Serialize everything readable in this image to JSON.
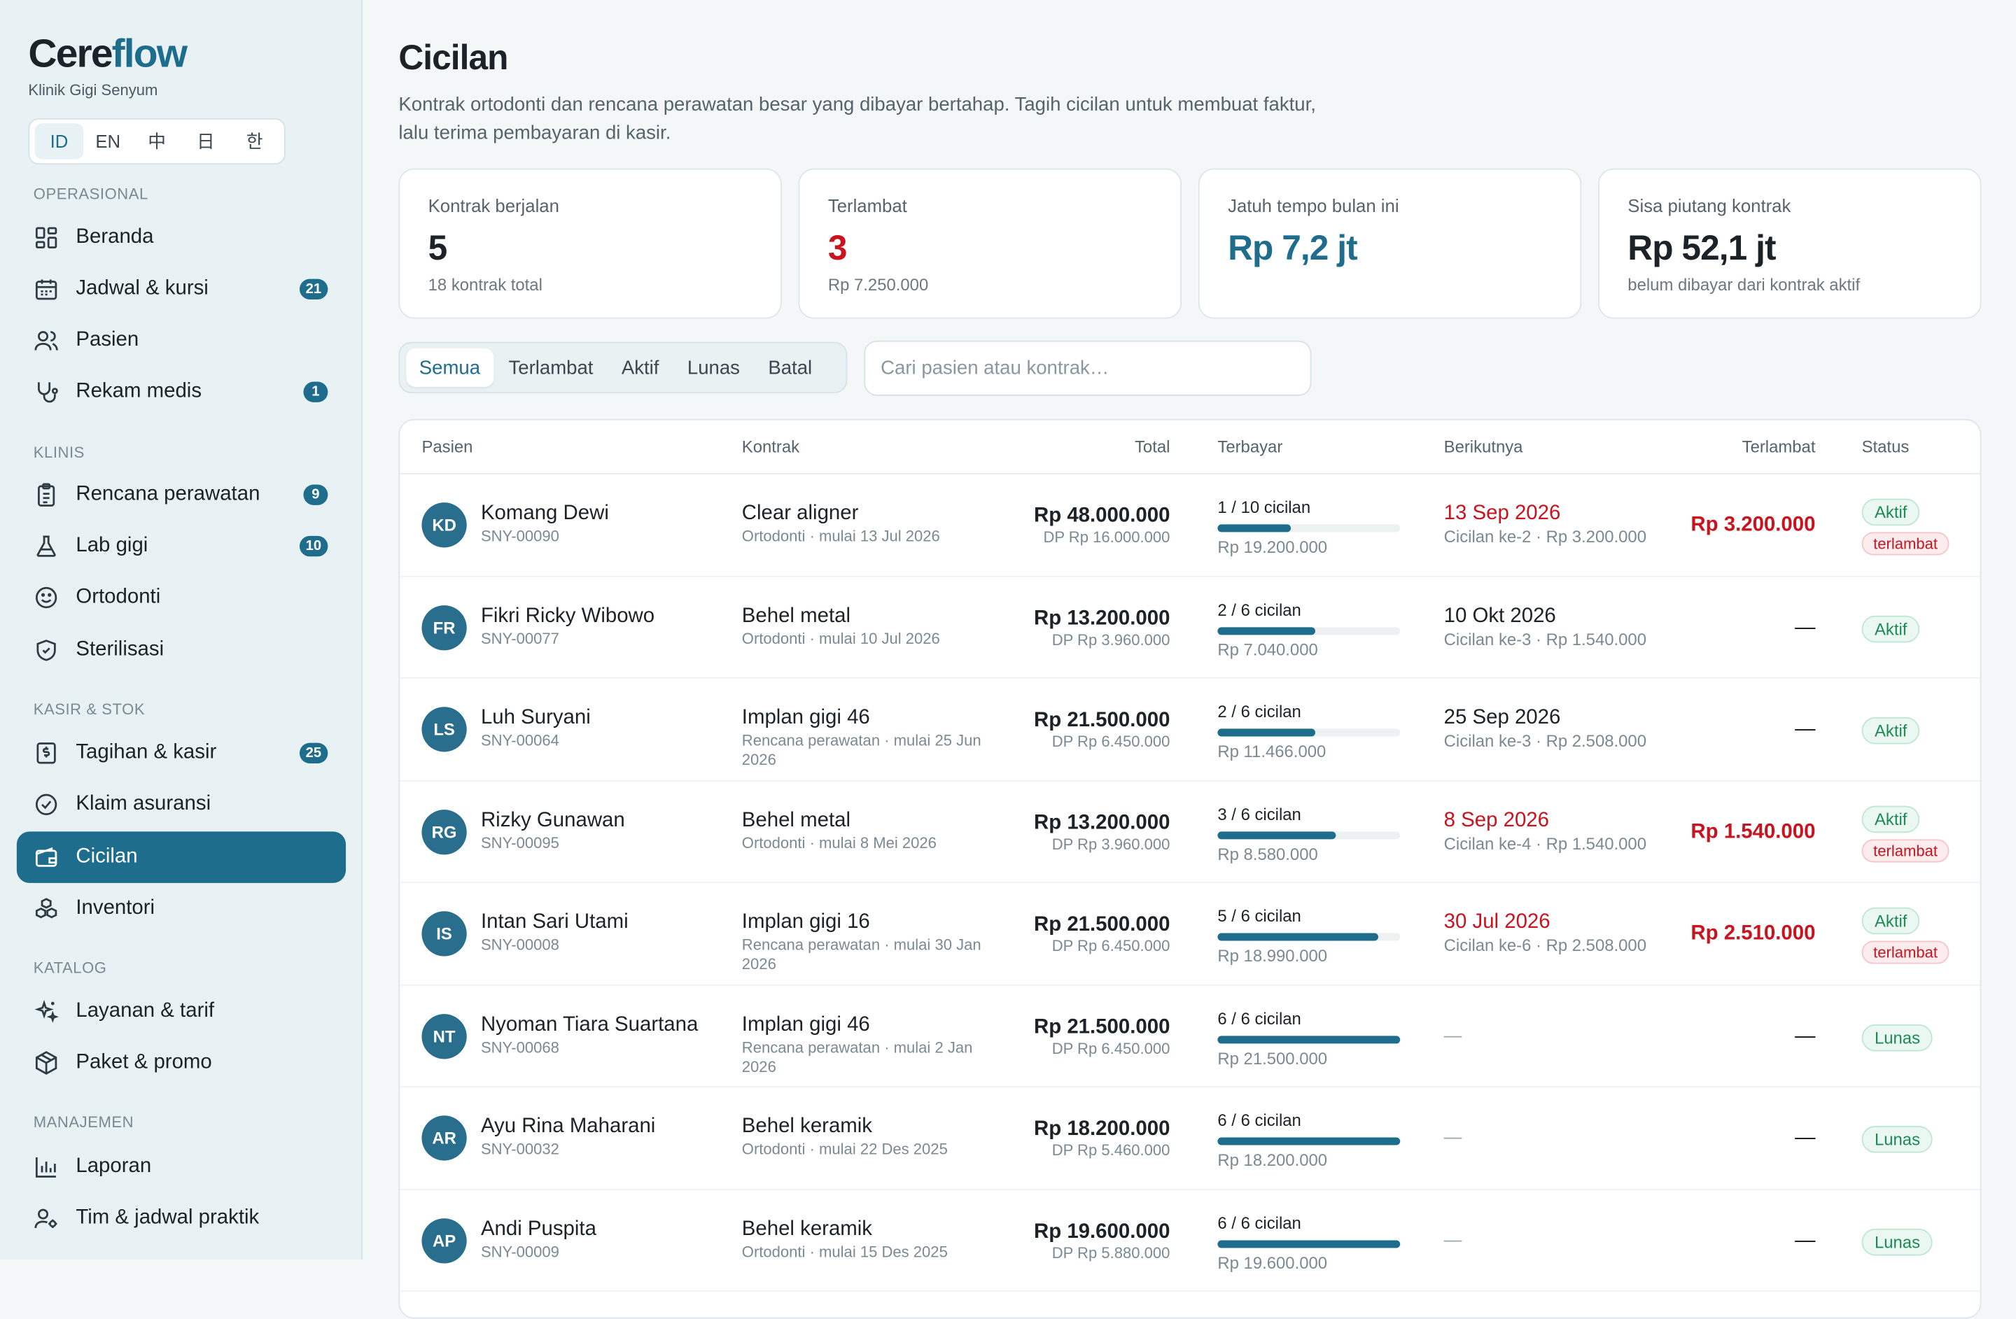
{
  "brand": {
    "logo_main": "Cere",
    "logo_accent": "flow",
    "clinic": "Klinik Gigi Senyum"
  },
  "languages": [
    "ID",
    "EN",
    "中",
    "日",
    "한"
  ],
  "sidebar": {
    "sections": [
      {
        "label": "OPERASIONAL"
      },
      {
        "label": "KLINIS"
      },
      {
        "label": "KASIR & STOK"
      },
      {
        "label": "KATALOG"
      },
      {
        "label": "MANAJEMEN"
      }
    ],
    "items": [
      {
        "label": "Beranda",
        "icon": "dashboard-icon"
      },
      {
        "label": "Jadwal & kursi",
        "icon": "calendar-icon",
        "badge": "21"
      },
      {
        "label": "Pasien",
        "icon": "users-icon"
      },
      {
        "label": "Rekam medis",
        "icon": "stethoscope-icon",
        "badge": "1"
      },
      {
        "label": "Rencana perawatan",
        "icon": "clipboard-icon",
        "badge": "9"
      },
      {
        "label": "Lab gigi",
        "icon": "flask-icon",
        "badge": "10"
      },
      {
        "label": "Ortodonti",
        "icon": "smile-icon"
      },
      {
        "label": "Sterilisasi",
        "icon": "shield-icon"
      },
      {
        "label": "Tagihan & kasir",
        "icon": "receipt-icon",
        "badge": "25"
      },
      {
        "label": "Klaim asuransi",
        "icon": "check-circle-icon"
      },
      {
        "label": "Cicilan",
        "icon": "wallet-icon",
        "active": true
      },
      {
        "label": "Inventori",
        "icon": "boxes-icon"
      },
      {
        "label": "Layanan & tarif",
        "icon": "sparkles-icon"
      },
      {
        "label": "Paket & promo",
        "icon": "package-icon"
      },
      {
        "label": "Laporan",
        "icon": "bar-chart-icon"
      },
      {
        "label": "Tim & jadwal praktik",
        "icon": "user-gear-icon"
      }
    ]
  },
  "page": {
    "title": "Cicilan",
    "subtitle": "Kontrak ortodonti dan rencana perawatan besar yang dibayar bertahap. Tagih cicilan untuk membuat faktur, lalu terima pembayaran di kasir."
  },
  "stats": [
    {
      "label": "Kontrak berjalan",
      "value": "5",
      "sub": "18 kontrak total"
    },
    {
      "label": "Terlambat",
      "value": "3",
      "sub": "Rp 7.250.000"
    },
    {
      "label": "Jatuh tempo bulan ini",
      "value": "Rp 7,2 jt",
      "sub": ""
    },
    {
      "label": "Sisa piutang kontrak",
      "value": "Rp 52,1 jt",
      "sub": "belum dibayar dari kontrak aktif"
    }
  ],
  "filters": {
    "tabs": [
      "Semua",
      "Terlambat",
      "Aktif",
      "Lunas",
      "Batal"
    ],
    "active": "Semua"
  },
  "search": {
    "placeholder": "Cari pasien atau kontrak…",
    "value": ""
  },
  "table": {
    "headers": {
      "patient": "Pasien",
      "contract": "Kontrak",
      "total": "Total",
      "paid": "Terbayar",
      "next": "Berikutnya",
      "late": "Terlambat",
      "status": "Status"
    },
    "rows": [
      {
        "initials": "KD",
        "name": "Komang Dewi",
        "id": "SNY-00090",
        "contract": "Clear aligner",
        "meta": "Ortodonti · mulai 13 Jul 2026",
        "total": "Rp 48.000.000",
        "dp": "DP Rp 16.000.000",
        "installments": "1 / 10 cicilan",
        "progress": 0.4,
        "paid": "Rp 19.200.000",
        "next_date": "13 Sep 2026",
        "next_overdue": true,
        "next_sub": "Cicilan ke-2 · Rp 3.200.000",
        "late": "Rp 3.200.000",
        "status": "Aktif",
        "late_badge": "terlambat"
      },
      {
        "initials": "FR",
        "name": "Fikri Ricky Wibowo",
        "id": "SNY-00077",
        "contract": "Behel metal",
        "meta": "Ortodonti · mulai 10 Jul 2026",
        "total": "Rp 13.200.000",
        "dp": "DP Rp 3.960.000",
        "installments": "2 / 6 cicilan",
        "progress": 0.533,
        "paid": "Rp 7.040.000",
        "next_date": "10 Okt 2026",
        "next_overdue": false,
        "next_sub": "Cicilan ke-3 · Rp 1.540.000",
        "late": "—",
        "status": "Aktif",
        "late_badge": ""
      },
      {
        "initials": "LS",
        "name": "Luh Suryani",
        "id": "SNY-00064",
        "contract": "Implan gigi 46",
        "meta": "Rencana perawatan · mulai 25 Jun 2026",
        "total": "Rp 21.500.000",
        "dp": "DP Rp 6.450.000",
        "installments": "2 / 6 cicilan",
        "progress": 0.533,
        "paid": "Rp 11.466.000",
        "next_date": "25 Sep 2026",
        "next_overdue": false,
        "next_sub": "Cicilan ke-3 · Rp 2.508.000",
        "late": "—",
        "status": "Aktif",
        "late_badge": ""
      },
      {
        "initials": "RG",
        "name": "Rizky Gunawan",
        "id": "SNY-00095",
        "contract": "Behel metal",
        "meta": "Ortodonti · mulai 8 Mei 2026",
        "total": "Rp 13.200.000",
        "dp": "DP Rp 3.960.000",
        "installments": "3 / 6 cicilan",
        "progress": 0.65,
        "paid": "Rp 8.580.000",
        "next_date": "8 Sep 2026",
        "next_overdue": true,
        "next_sub": "Cicilan ke-4 · Rp 1.540.000",
        "late": "Rp 1.540.000",
        "status": "Aktif",
        "late_badge": "terlambat"
      },
      {
        "initials": "IS",
        "name": "Intan Sari Utami",
        "id": "SNY-00008",
        "contract": "Implan gigi 16",
        "meta": "Rencana perawatan · mulai 30 Jan 2026",
        "total": "Rp 21.500.000",
        "dp": "DP Rp 6.450.000",
        "installments": "5 / 6 cicilan",
        "progress": 0.883,
        "paid": "Rp 18.990.000",
        "next_date": "30 Jul 2026",
        "next_overdue": true,
        "next_sub": "Cicilan ke-6 · Rp 2.508.000",
        "late": "Rp 2.510.000",
        "status": "Aktif",
        "late_badge": "terlambat"
      },
      {
        "initials": "NT",
        "name": "Nyoman Tiara Suartana",
        "id": "SNY-00068",
        "contract": "Implan gigi 46",
        "meta": "Rencana perawatan · mulai 2 Jan 2026",
        "total": "Rp 21.500.000",
        "dp": "DP Rp 6.450.000",
        "installments": "6 / 6 cicilan",
        "progress": 1.0,
        "paid": "Rp 21.500.000",
        "next_date": "",
        "next_overdue": false,
        "next_sub": "",
        "late": "—",
        "status": "Lunas",
        "late_badge": ""
      },
      {
        "initials": "AR",
        "name": "Ayu Rina Maharani",
        "id": "SNY-00032",
        "contract": "Behel keramik",
        "meta": "Ortodonti · mulai 22 Des 2025",
        "total": "Rp 18.200.000",
        "dp": "DP Rp 5.460.000",
        "installments": "6 / 6 cicilan",
        "progress": 1.0,
        "paid": "Rp 18.200.000",
        "next_date": "",
        "next_overdue": false,
        "next_sub": "",
        "late": "—",
        "status": "Lunas",
        "late_badge": ""
      },
      {
        "initials": "AP",
        "name": "Andi Puspita",
        "id": "SNY-00009",
        "contract": "Behel keramik",
        "meta": "Ortodonti · mulai 15 Des 2025",
        "total": "Rp 19.600.000",
        "dp": "DP Rp 5.880.000",
        "installments": "6 / 6 cicilan",
        "progress": 1.0,
        "paid": "Rp 19.600.000",
        "next_date": "",
        "next_overdue": false,
        "next_sub": "",
        "late": "—",
        "status": "Lunas",
        "late_badge": ""
      }
    ],
    "empty_marker": "—"
  },
  "colors": {
    "accent": "#1f6d8c",
    "danger": "#c8141e",
    "success": "#1d8a56",
    "sidebar_bg": "#e8f1f3"
  }
}
